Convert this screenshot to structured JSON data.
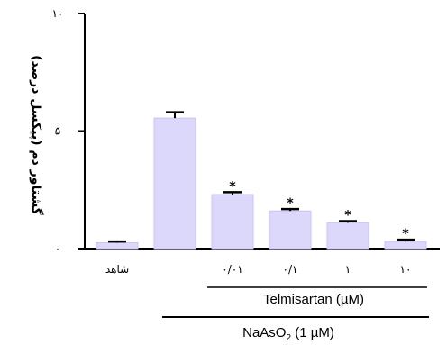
{
  "chart_data": {
    "type": "bar",
    "ylabel": "گشتاور دم (پیکسل درصد)",
    "ylim": [
      0,
      10
    ],
    "y_ticks": [
      {
        "value": 0,
        "label": "۰"
      },
      {
        "value": 5,
        "label": "۵"
      },
      {
        "value": 10,
        "label": "۱۰"
      }
    ],
    "categories": [
      "شاهد",
      "",
      "۰/۰۱",
      "۰/۱",
      "۱",
      "۱۰"
    ],
    "values": [
      0.25,
      5.55,
      2.3,
      1.6,
      1.1,
      0.3
    ],
    "errors": [
      0.05,
      0.25,
      0.1,
      0.08,
      0.07,
      0.08
    ],
    "significant": [
      false,
      false,
      true,
      true,
      true,
      true
    ],
    "significance_marker": "*",
    "bar_color": "#dcd8fb",
    "bar_edge_color": "#c9c4f2",
    "groups": {
      "telmisartan": {
        "label": "Telmisartan (µM)",
        "from": 2,
        "to": 5
      },
      "naaso2": {
        "label_prefix": "NaAsO",
        "label_sub": "2",
        "label_suffix": " (1 µM)",
        "from": 1,
        "to": 5
      }
    },
    "grid": false,
    "legend": "none"
  }
}
